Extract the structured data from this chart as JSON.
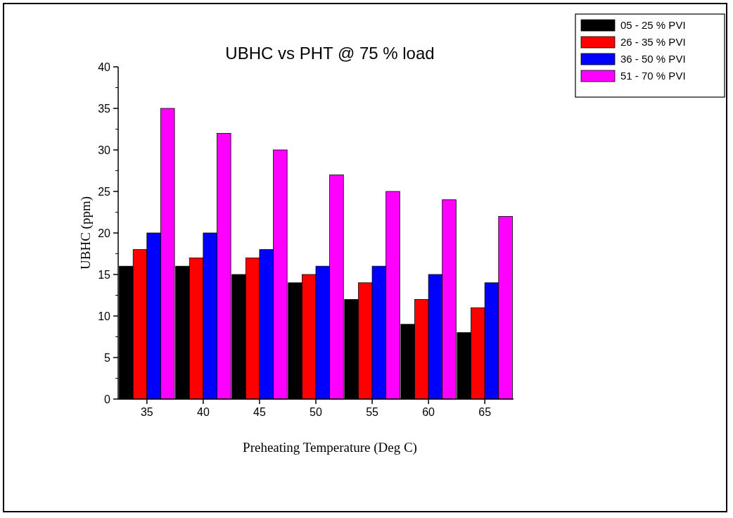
{
  "chart_data": {
    "type": "bar",
    "title": "UBHC vs PHT @ 75 % load",
    "xlabel": "Preheating Temperature (Deg C)",
    "ylabel": "UBHC (ppm)",
    "categories": [
      "35",
      "40",
      "45",
      "50",
      "55",
      "60",
      "65"
    ],
    "series": [
      {
        "name": "05 - 25 % PVI",
        "color": "#000000",
        "values": [
          16,
          16,
          15,
          14,
          12,
          9,
          8
        ]
      },
      {
        "name": "26 - 35 % PVI",
        "color": "#ff0000",
        "values": [
          18,
          17,
          17,
          15,
          14,
          12,
          11
        ]
      },
      {
        "name": "36 - 50 % PVI",
        "color": "#0000ff",
        "values": [
          20,
          20,
          18,
          16,
          16,
          15,
          14
        ]
      },
      {
        "name": "51 - 70 % PVI",
        "color": "#ff00ff",
        "values": [
          35,
          32,
          30,
          27,
          25,
          24,
          22
        ]
      }
    ],
    "ylim": [
      0,
      40
    ],
    "yticks": [
      0,
      5,
      10,
      15,
      20,
      25,
      30,
      35,
      40
    ],
    "grid": false,
    "legend": "top right"
  }
}
